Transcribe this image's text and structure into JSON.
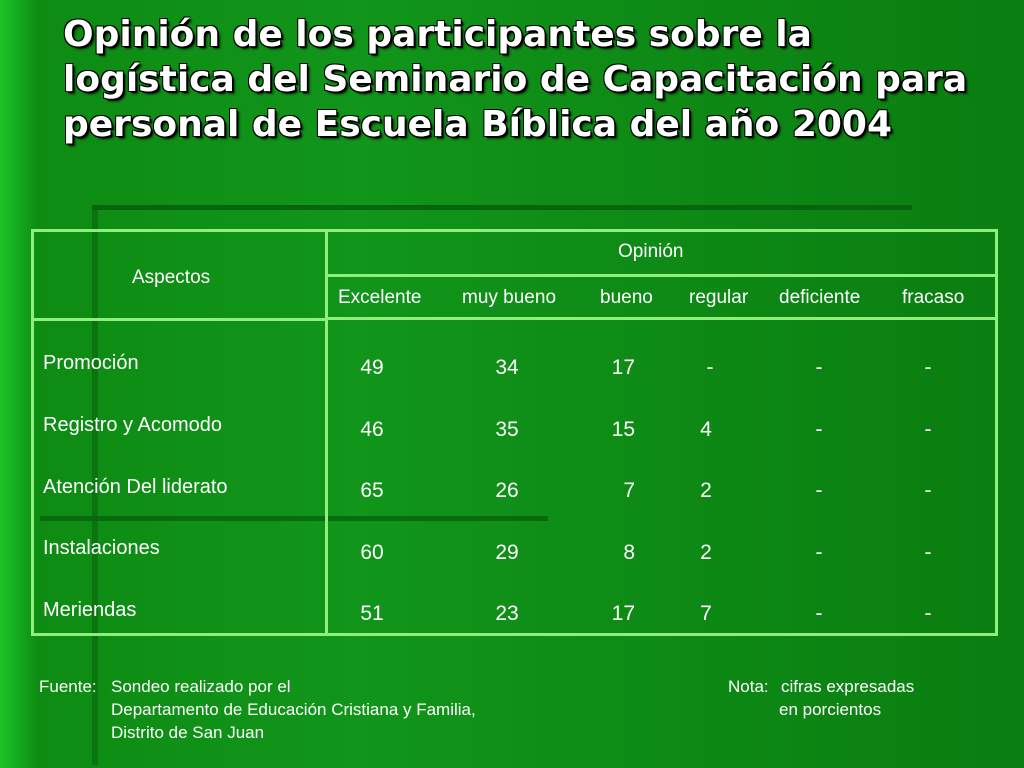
{
  "title": "Opinión de los participantes sobre la logística del Seminario de Capacitación para personal de Escuela Bíblica del año 2004",
  "table": {
    "aspect_header": "Aspectos",
    "opinion_header": "Opinión",
    "columns": [
      "Excelente",
      "muy bueno",
      "bueno",
      "regular",
      "deficiente",
      "fracaso"
    ],
    "rows": [
      {
        "aspect": "Promoción",
        "values": [
          "49",
          "34",
          "17",
          "-",
          "-",
          "-"
        ]
      },
      {
        "aspect": "Registro y Acomodo",
        "values": [
          "46",
          "35",
          "15",
          "4",
          "-",
          "-"
        ]
      },
      {
        "aspect": "Atención Del liderato",
        "values": [
          "65",
          "26",
          "7",
          "2",
          "-",
          "-"
        ]
      },
      {
        "aspect": "Instalaciones",
        "values": [
          "60",
          "29",
          "8",
          "2",
          "-",
          "-"
        ]
      },
      {
        "aspect": "Meriendas",
        "values": [
          "51",
          "23",
          "17",
          "7",
          "-",
          "-"
        ]
      }
    ]
  },
  "source": {
    "label": "Fuente:",
    "line1": "Sondeo realizado por el",
    "line2": "Departamento de Educación Cristiana y Familia,",
    "line3": "Distrito de San Juan"
  },
  "note": {
    "label": "Nota:",
    "line1": "cifras expresadas",
    "line2": "en porcientos"
  }
}
